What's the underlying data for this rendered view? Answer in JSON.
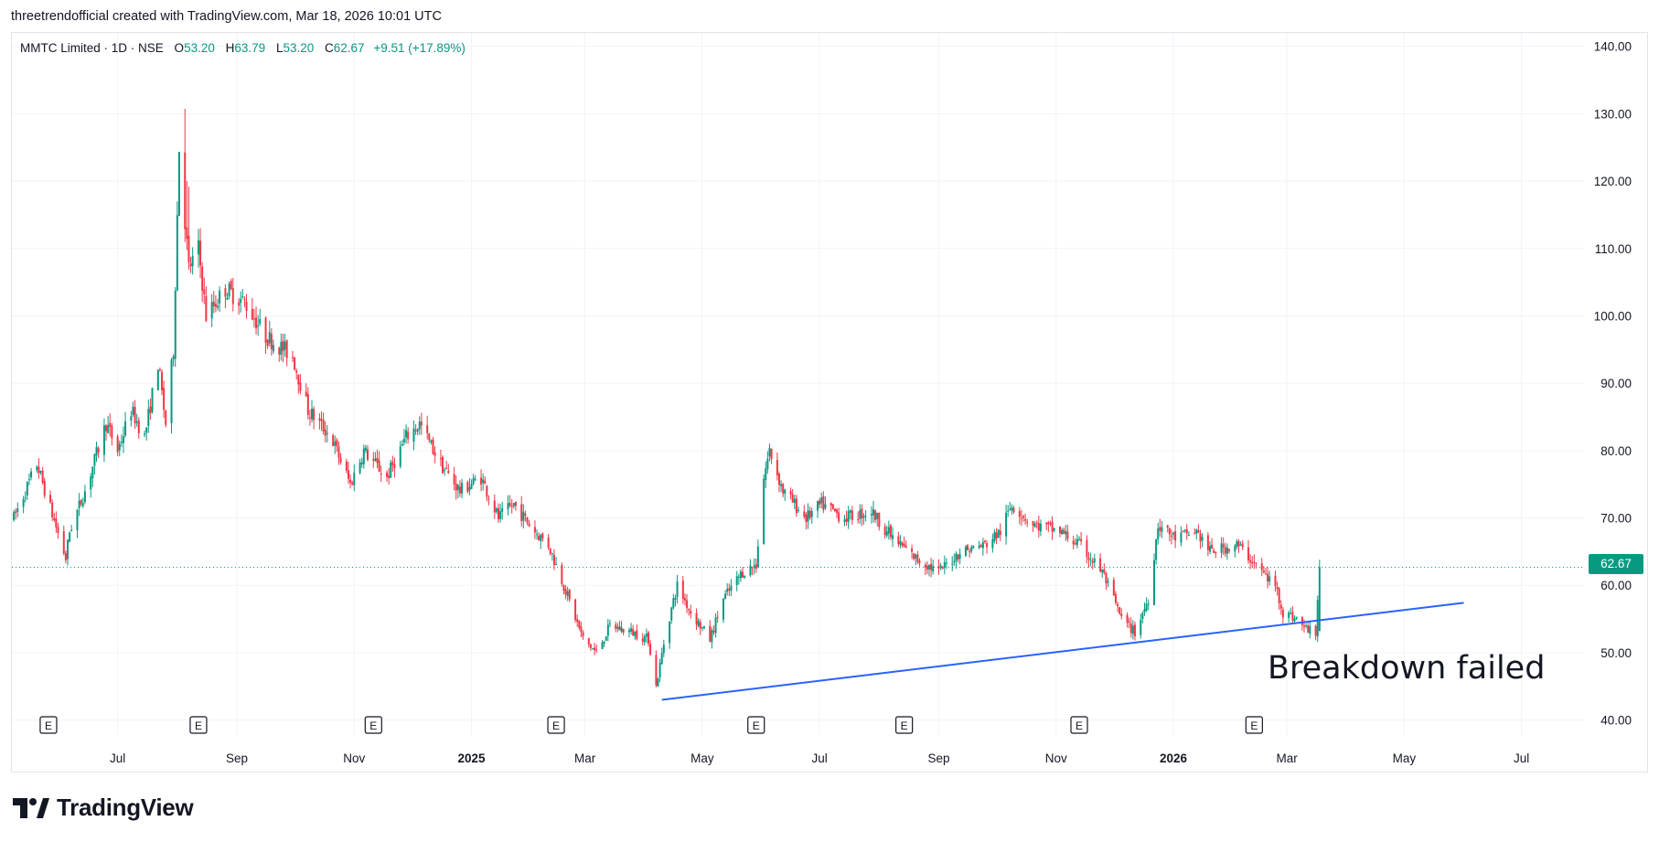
{
  "header": {
    "caption": "threetrendofficial created with TradingView.com, Mar 18, 2026 10:01 UTC"
  },
  "legend": {
    "symbol": "MMTC Limited · 1D · NSE",
    "o_label": "O",
    "o": "53.20",
    "h_label": "H",
    "h": "63.79",
    "l_label": "L",
    "l": "53.20",
    "c_label": "C",
    "c": "62.67",
    "change": "+9.51 (+17.89%)"
  },
  "price_badge": "62.67",
  "annotation": "Breakdown failed",
  "brand": {
    "name": "TradingView"
  },
  "colors": {
    "up": "#089981",
    "down": "#f23645",
    "trendline": "#2962ff",
    "grid": "#f0f3fa"
  },
  "chart_data": {
    "type": "candlestick",
    "title": "MMTC Limited · 1D · NSE",
    "ylim": [
      37.5,
      142
    ],
    "y_ticks": [
      "140.00",
      "130.00",
      "120.00",
      "110.00",
      "100.00",
      "90.00",
      "80.00",
      "70.00",
      "60.00",
      "50.00",
      "40.00"
    ],
    "x_ticks": [
      {
        "label": "Jul",
        "date": "2024-07-01"
      },
      {
        "label": "Sep",
        "date": "2024-09-01"
      },
      {
        "label": "Nov",
        "date": "2024-11-01"
      },
      {
        "label": "2025",
        "date": "2025-01-01",
        "bold": true
      },
      {
        "label": "Mar",
        "date": "2025-03-01"
      },
      {
        "label": "May",
        "date": "2025-05-01"
      },
      {
        "label": "Jul",
        "date": "2025-07-01"
      },
      {
        "label": "Sep",
        "date": "2025-09-01"
      },
      {
        "label": "Nov",
        "date": "2025-11-01"
      },
      {
        "label": "2026",
        "date": "2026-01-01",
        "bold": true
      },
      {
        "label": "Mar",
        "date": "2026-03-01"
      },
      {
        "label": "May",
        "date": "2026-05-01"
      },
      {
        "label": "Jul",
        "date": "2026-07-01"
      }
    ],
    "x_range": [
      "2024-05-07",
      "2026-08-03"
    ],
    "earnings_markers": [
      "2024-05-26",
      "2024-08-12",
      "2024-11-11",
      "2025-02-14",
      "2025-05-29",
      "2025-08-14",
      "2025-11-13",
      "2026-02-12"
    ],
    "earnings_label": "E",
    "price_points": [
      [
        "2024-05-08",
        70
      ],
      [
        "2024-05-20",
        78
      ],
      [
        "2024-06-04",
        64
      ],
      [
        "2024-06-06",
        68
      ],
      [
        "2024-06-14",
        74
      ],
      [
        "2024-06-25",
        84
      ],
      [
        "2024-07-01",
        80
      ],
      [
        "2024-07-08",
        86
      ],
      [
        "2024-07-15",
        82
      ],
      [
        "2024-07-22",
        93
      ],
      [
        "2024-07-26",
        84
      ],
      [
        "2024-07-30",
        95
      ],
      [
        "2024-08-02",
        125
      ],
      [
        "2024-08-07",
        107
      ],
      [
        "2024-08-12",
        110
      ],
      [
        "2024-08-16",
        100
      ],
      [
        "2024-08-26",
        104
      ],
      [
        "2024-09-05",
        102
      ],
      [
        "2024-09-16",
        97
      ],
      [
        "2024-09-30",
        94
      ],
      [
        "2024-10-08",
        86
      ],
      [
        "2024-10-20",
        82
      ],
      [
        "2024-10-30",
        75
      ],
      [
        "2024-11-06",
        80
      ],
      [
        "2024-11-18",
        76
      ],
      [
        "2024-11-28",
        82
      ],
      [
        "2024-12-05",
        84
      ],
      [
        "2024-12-16",
        78
      ],
      [
        "2024-12-26",
        74
      ],
      [
        "2025-01-06",
        76
      ],
      [
        "2025-01-15",
        70
      ],
      [
        "2025-01-23",
        72
      ],
      [
        "2025-02-03",
        68
      ],
      [
        "2025-02-10",
        66
      ],
      [
        "2025-02-18",
        60
      ],
      [
        "2025-02-28",
        52
      ],
      [
        "2025-03-07",
        50
      ],
      [
        "2025-03-14",
        54
      ],
      [
        "2025-03-26",
        53
      ],
      [
        "2025-04-03",
        52
      ],
      [
        "2025-04-07",
        45
      ],
      [
        "2025-04-12",
        53
      ],
      [
        "2025-04-18",
        60
      ],
      [
        "2025-04-25",
        56
      ],
      [
        "2025-05-05",
        52
      ],
      [
        "2025-05-12",
        58
      ],
      [
        "2025-05-22",
        62
      ],
      [
        "2025-05-29",
        63
      ],
      [
        "2025-06-02",
        76
      ],
      [
        "2025-06-05",
        80
      ],
      [
        "2025-06-12",
        74
      ],
      [
        "2025-06-24",
        70
      ],
      [
        "2025-07-02",
        72
      ],
      [
        "2025-07-14",
        70
      ],
      [
        "2025-07-28",
        71
      ],
      [
        "2025-08-08",
        67
      ],
      [
        "2025-08-20",
        64
      ],
      [
        "2025-09-01",
        62
      ],
      [
        "2025-09-12",
        65
      ],
      [
        "2025-09-25",
        66
      ],
      [
        "2025-10-03",
        68
      ],
      [
        "2025-10-09",
        72
      ],
      [
        "2025-10-20",
        69
      ],
      [
        "2025-11-03",
        68
      ],
      [
        "2025-11-13",
        66
      ],
      [
        "2025-11-25",
        62
      ],
      [
        "2025-12-05",
        55
      ],
      [
        "2025-12-12",
        53
      ],
      [
        "2025-12-19",
        58
      ],
      [
        "2025-12-24",
        69
      ],
      [
        "2026-01-02",
        67
      ],
      [
        "2026-01-13",
        68
      ],
      [
        "2026-01-20",
        65
      ],
      [
        "2026-02-03",
        66
      ],
      [
        "2026-02-10",
        64
      ],
      [
        "2026-02-19",
        61
      ],
      [
        "2026-02-23",
        60
      ],
      [
        "2026-02-27",
        56
      ],
      [
        "2026-03-06",
        55
      ],
      [
        "2026-03-11",
        53.5
      ],
      [
        "2026-03-16",
        53.2
      ],
      [
        "2026-03-18",
        62.67
      ]
    ],
    "trendline": [
      [
        "2025-04-10",
        43
      ],
      [
        "2026-06-01",
        57.4
      ]
    ],
    "last_price": 62.67
  }
}
